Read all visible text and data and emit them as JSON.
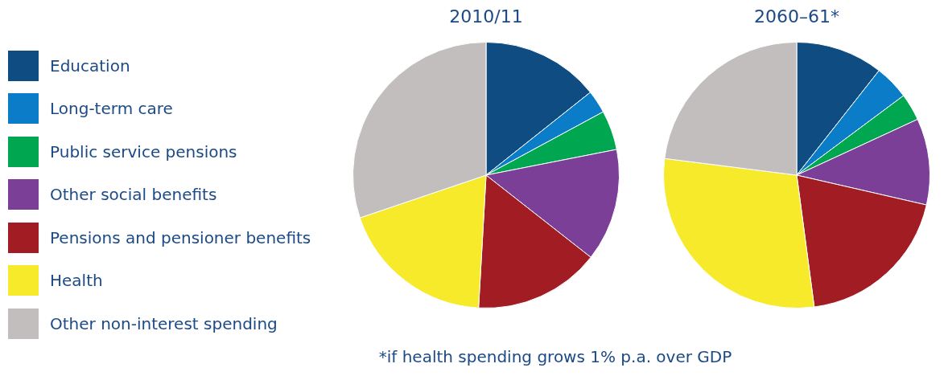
{
  "chart_data": [
    {
      "type": "pie",
      "title": "2010/11",
      "categories": [
        "Education",
        "Long-term care",
        "Public service pensions",
        "Other social benefits",
        "Pensions and pensioner benefits",
        "Health",
        "Other non-interest spending"
      ],
      "values": [
        14.3,
        2.8,
        4.8,
        13.7,
        15.3,
        18.9,
        30.2
      ],
      "colors": [
        "#0f4c81",
        "#0a7cc8",
        "#00a650",
        "#7b3f98",
        "#a21c24",
        "#f6ea2b",
        "#c2bebd"
      ],
      "legend": "left"
    },
    {
      "type": "pie",
      "title": "2060–61*",
      "categories": [
        null,
        null,
        null,
        null,
        null,
        null,
        null
      ],
      "values": [
        10.6,
        4.2,
        3.3,
        10.5,
        19.3,
        29.1,
        23.0
      ],
      "colors": [
        "#0f4c81",
        "#0a7cc8",
        "#00a650",
        "#7b3f98",
        "#a21c24",
        "#f6ea2b",
        "#c2bebd"
      ],
      "annotations": [
        "*if health spending grows 1% p.a. over GDP"
      ]
    }
  ]
}
